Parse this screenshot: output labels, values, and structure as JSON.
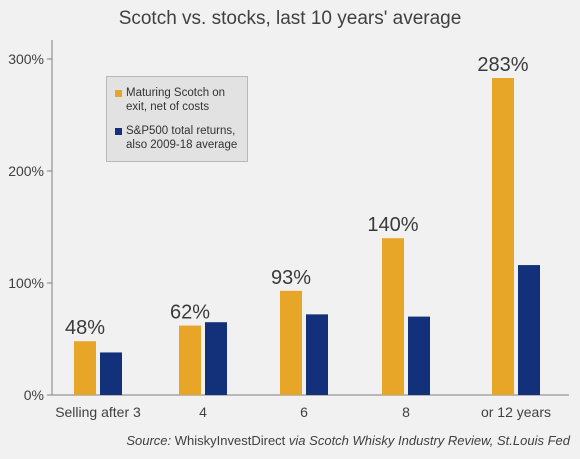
{
  "chart_data": {
    "type": "bar",
    "title": "Scotch vs. stocks, last 10 years' average",
    "categories": [
      "Selling after 3",
      "4",
      "6",
      "8",
      "or 12 years"
    ],
    "series": [
      {
        "name": "Maturing Scotch on exit, net of costs",
        "values": [
          48,
          62,
          93,
          140,
          283
        ],
        "color": "#e8a628"
      },
      {
        "name": "S&P500 total returns, also 2009-18 average",
        "values": [
          38,
          65,
          72,
          70,
          116
        ],
        "color": "#12317a"
      }
    ],
    "data_labels": [
      "48%",
      "62%",
      "93%",
      "140%",
      "283%"
    ],
    "yticks": [
      "0%",
      "100%",
      "200%",
      "300%"
    ],
    "ylim": [
      0,
      300
    ],
    "xlabel": "",
    "ylabel": "",
    "grid": false,
    "legend_placement": "top-left",
    "source": {
      "prefix": "Source:",
      "org": "WhiskyInvestDirect",
      "via": "via",
      "publication": "Scotch Whisky Industry Review, St.Louis Fed"
    }
  }
}
